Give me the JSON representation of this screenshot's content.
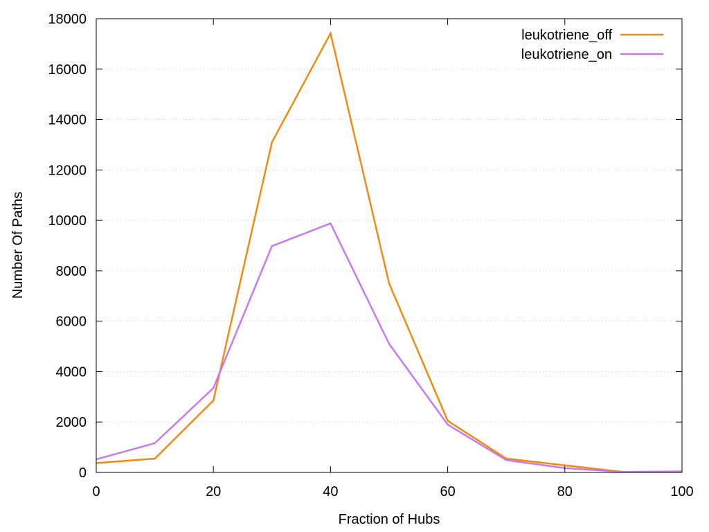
{
  "chart_data": {
    "type": "line",
    "xlabel": "Fraction of Hubs",
    "ylabel": "Number Of Paths",
    "xlim": [
      0,
      100
    ],
    "ylim": [
      0,
      18000
    ],
    "x_ticks": [
      0,
      20,
      40,
      60,
      80,
      100
    ],
    "y_ticks": [
      0,
      2000,
      4000,
      6000,
      8000,
      10000,
      12000,
      14000,
      16000,
      18000
    ],
    "grid": true,
    "legend_position": "top-right",
    "x": [
      0,
      10,
      20,
      30,
      40,
      50,
      60,
      70,
      80,
      90,
      100
    ],
    "series": [
      {
        "name": "leukotriene_off",
        "color": "#f28a0e",
        "values": [
          370,
          550,
          2850,
          13100,
          17420,
          7500,
          2050,
          550,
          280,
          20,
          40
        ]
      },
      {
        "name": "leukotriene_on",
        "color": "#c878f5",
        "values": [
          520,
          1160,
          3350,
          8980,
          9880,
          5100,
          1900,
          490,
          170,
          20,
          30
        ]
      }
    ]
  }
}
